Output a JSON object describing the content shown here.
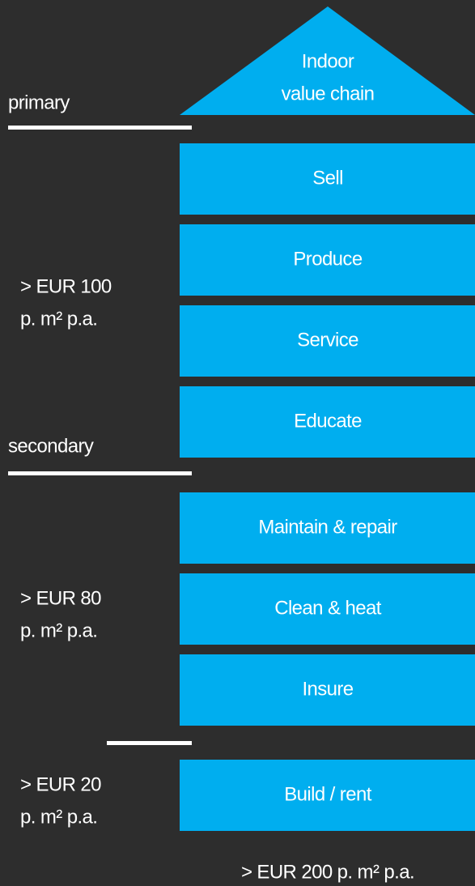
{
  "header": {
    "lines": [
      "Indoor",
      "value chain"
    ]
  },
  "levels": [
    {
      "name": "primary"
    },
    {
      "name": "secondary"
    }
  ],
  "boxes": [
    "Sell",
    "Produce",
    "Service",
    "Educate",
    "Maintain & repair",
    "Clean & heat",
    "Insure",
    "Build / rent"
  ],
  "side_labels": [
    {
      "lines": [
        "> EUR 100",
        "p. m² p.a."
      ]
    },
    {
      "lines": [
        "> EUR 80",
        "p. m² p.a."
      ]
    },
    {
      "lines": [
        "> EUR 20",
        "p. m² p.a."
      ]
    }
  ],
  "footer": "> EUR 200 p. m² p.a."
}
